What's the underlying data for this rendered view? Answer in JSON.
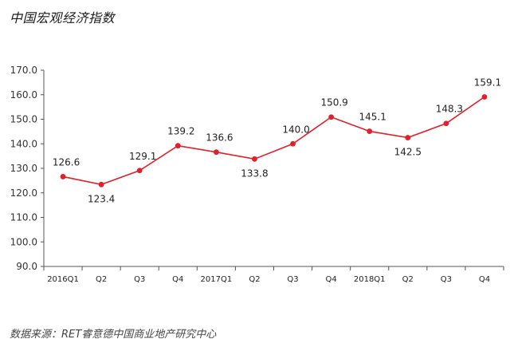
{
  "title": "中国宏观经济指数",
  "source": "数据来源：RET睿意德中国商业地产研究中心",
  "colors": {
    "line": "#e0202a",
    "axis": "#555555"
  },
  "chart_data": {
    "type": "line",
    "title": "中国宏观经济指数",
    "categories": [
      "2016Q1",
      "Q2",
      "Q3",
      "Q4",
      "2017Q1",
      "Q2",
      "Q3",
      "Q4",
      "2018Q1",
      "Q2",
      "Q3",
      "Q4"
    ],
    "values": [
      126.6,
      123.4,
      129.1,
      139.2,
      136.6,
      133.8,
      140.0,
      150.9,
      145.1,
      142.5,
      148.3,
      159.1
    ],
    "value_labels": [
      "126.6",
      "123.4",
      "129.1",
      "139.2",
      "136.6",
      "133.8",
      "140.0",
      "150.9",
      "145.1",
      "142.5",
      "148.3",
      "159.1"
    ],
    "yticks": [
      "90.0",
      "100.0",
      "110.0",
      "120.0",
      "130.0",
      "140.0",
      "150.0",
      "160.0",
      "170.0"
    ],
    "ylim": [
      90,
      170
    ],
    "grid": false,
    "legend": "none"
  }
}
